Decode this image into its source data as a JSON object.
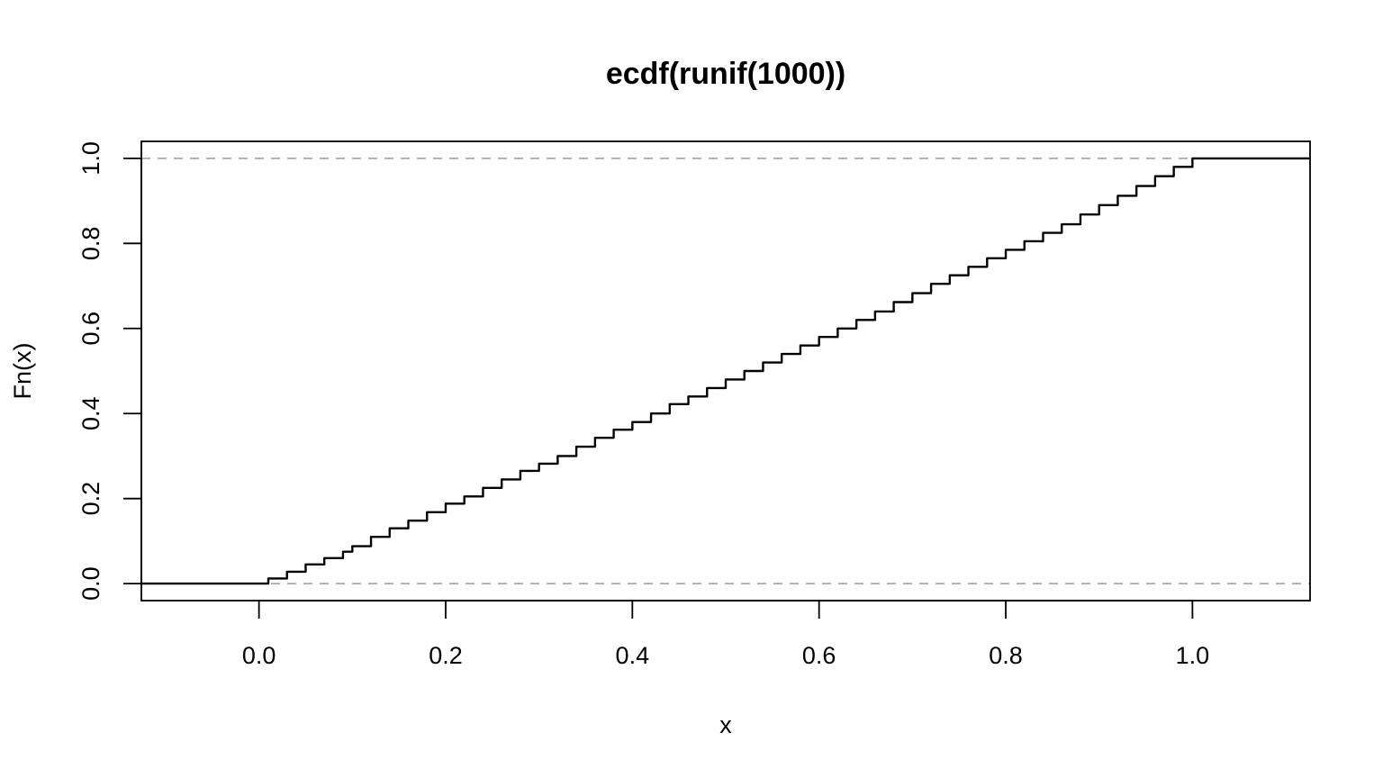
{
  "chart_data": {
    "type": "line",
    "title": "ecdf(runif(1000))",
    "xlabel": "x",
    "ylabel": "Fn(x)",
    "xlim": [
      -0.126,
      1.126
    ],
    "ylim": [
      -0.04,
      1.04
    ],
    "x_ticks": [
      0.0,
      0.2,
      0.4,
      0.6,
      0.8,
      1.0
    ],
    "x_tick_labels": [
      "0.0",
      "0.2",
      "0.4",
      "0.6",
      "0.8",
      "1.0"
    ],
    "y_ticks": [
      0.0,
      0.2,
      0.4,
      0.6,
      0.8,
      1.0
    ],
    "y_tick_labels": [
      "0.0",
      "0.2",
      "0.4",
      "0.6",
      "0.8",
      "1.0"
    ],
    "reference_lines": [
      0.0,
      1.0
    ],
    "grid": false,
    "series": [
      {
        "style": "step",
        "x": [
          -0.126,
          0.0,
          0.01,
          0.03,
          0.05,
          0.07,
          0.09,
          0.1,
          0.12,
          0.14,
          0.16,
          0.18,
          0.2,
          0.22,
          0.24,
          0.26,
          0.28,
          0.3,
          0.32,
          0.34,
          0.36,
          0.38,
          0.4,
          0.42,
          0.44,
          0.46,
          0.48,
          0.5,
          0.52,
          0.54,
          0.56,
          0.58,
          0.6,
          0.62,
          0.64,
          0.66,
          0.68,
          0.7,
          0.72,
          0.74,
          0.76,
          0.78,
          0.8,
          0.82,
          0.84,
          0.86,
          0.88,
          0.9,
          0.92,
          0.94,
          0.96,
          0.98,
          1.0,
          1.126
        ],
        "y": [
          0.0,
          0.0,
          0.012,
          0.028,
          0.045,
          0.06,
          0.075,
          0.088,
          0.11,
          0.13,
          0.148,
          0.168,
          0.188,
          0.205,
          0.225,
          0.245,
          0.265,
          0.282,
          0.3,
          0.322,
          0.343,
          0.362,
          0.38,
          0.4,
          0.422,
          0.44,
          0.46,
          0.48,
          0.5,
          0.52,
          0.54,
          0.56,
          0.58,
          0.6,
          0.62,
          0.64,
          0.662,
          0.683,
          0.705,
          0.725,
          0.745,
          0.765,
          0.785,
          0.805,
          0.825,
          0.845,
          0.868,
          0.89,
          0.912,
          0.935,
          0.958,
          0.98,
          1.0,
          1.0
        ]
      }
    ]
  }
}
